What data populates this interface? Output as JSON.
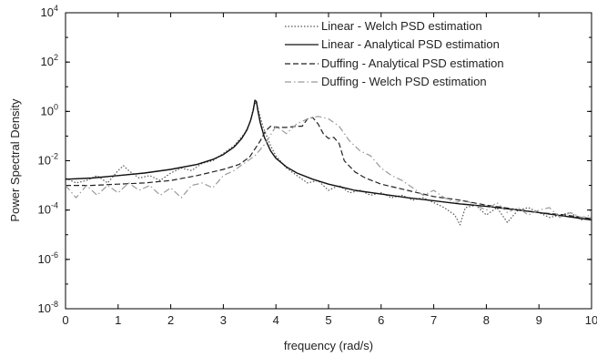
{
  "chart_data": {
    "type": "line",
    "title": "",
    "xlabel": "frequency (rad/s)",
    "ylabel": "Power Spectral Density",
    "xlim": [
      0,
      10
    ],
    "ylim_exponent": [
      -8,
      4
    ],
    "yscale": "log",
    "grid": false,
    "legend_position": "top-right",
    "x_ticks": [
      "0",
      "1",
      "2",
      "3",
      "4",
      "5",
      "6",
      "7",
      "8",
      "9",
      "10"
    ],
    "y_ticks": [
      {
        "base": "10",
        "exp": "-8",
        "value": -8
      },
      {
        "base": "10",
        "exp": "-6",
        "value": -6
      },
      {
        "base": "10",
        "exp": "-4",
        "value": -4
      },
      {
        "base": "10",
        "exp": "-2",
        "value": -2
      },
      {
        "base": "10",
        "exp": "0",
        "value": 0
      },
      {
        "base": "10",
        "exp": "2",
        "value": 2
      },
      {
        "base": "10",
        "exp": "4",
        "value": 4
      }
    ],
    "series": [
      {
        "name": "Linear - Welch PSD estimation",
        "style": "dotted",
        "color": "#555555",
        "x": [
          0.0,
          0.2,
          0.4,
          0.6,
          0.8,
          1.0,
          1.1,
          1.2,
          1.4,
          1.6,
          1.8,
          2.0,
          2.2,
          2.4,
          2.6,
          2.8,
          3.0,
          3.2,
          3.4,
          3.5,
          3.58,
          3.62,
          3.66,
          3.75,
          3.9,
          4.0,
          4.2,
          4.4,
          4.6,
          4.8,
          5.0,
          5.2,
          5.4,
          5.6,
          5.8,
          6.0,
          6.2,
          6.4,
          6.6,
          6.8,
          7.0,
          7.2,
          7.4,
          7.5,
          7.6,
          7.8,
          8.0,
          8.2,
          8.4,
          8.6,
          8.8,
          9.0,
          9.2,
          9.4,
          9.6,
          9.8,
          10.0
        ],
        "log10_y": [
          -2.7,
          -2.9,
          -2.8,
          -2.6,
          -2.9,
          -2.4,
          -2.2,
          -2.4,
          -2.7,
          -2.6,
          -2.8,
          -2.5,
          -2.3,
          -2.4,
          -2.1,
          -2.0,
          -1.7,
          -1.4,
          -0.9,
          -0.5,
          0.2,
          0.4,
          0.1,
          -0.6,
          -1.4,
          -1.8,
          -2.3,
          -2.6,
          -2.9,
          -2.8,
          -3.2,
          -3.0,
          -3.3,
          -3.2,
          -3.4,
          -3.3,
          -3.5,
          -3.4,
          -3.6,
          -3.5,
          -3.7,
          -3.9,
          -4.2,
          -4.6,
          -3.9,
          -3.8,
          -4.2,
          -3.9,
          -4.5,
          -4.0,
          -3.9,
          -4.1,
          -4.3,
          -4.2,
          -4.1,
          -4.4,
          -4.3
        ]
      },
      {
        "name": "Linear - Analytical PSD estimation",
        "style": "solid",
        "color": "#111111",
        "x": [
          0.0,
          0.5,
          1.0,
          1.5,
          2.0,
          2.5,
          2.8,
          3.0,
          3.2,
          3.35,
          3.45,
          3.52,
          3.57,
          3.6,
          3.63,
          3.66,
          3.7,
          3.78,
          3.9,
          4.0,
          4.2,
          4.4,
          4.7,
          5.0,
          5.5,
          6.0,
          6.5,
          7.0,
          7.5,
          8.0,
          8.5,
          9.0,
          9.5,
          10.0
        ],
        "log10_y": [
          -2.75,
          -2.7,
          -2.6,
          -2.5,
          -2.35,
          -2.15,
          -1.95,
          -1.75,
          -1.45,
          -1.1,
          -0.75,
          -0.35,
          0.05,
          0.45,
          0.4,
          0.0,
          -0.45,
          -1.05,
          -1.6,
          -1.9,
          -2.25,
          -2.5,
          -2.75,
          -2.95,
          -3.2,
          -3.35,
          -3.5,
          -3.62,
          -3.75,
          -3.85,
          -3.97,
          -4.1,
          -4.25,
          -4.4
        ]
      },
      {
        "name": "Duffing - Analytical PSD estimation",
        "style": "dashed",
        "color": "#222222",
        "x": [
          0.0,
          0.5,
          1.0,
          1.5,
          2.0,
          2.5,
          3.0,
          3.3,
          3.5,
          3.7,
          3.8,
          3.9,
          4.0,
          4.2,
          4.4,
          4.5,
          4.6,
          4.7,
          4.8,
          4.9,
          5.0,
          5.1,
          5.2,
          5.3,
          5.5,
          5.7,
          6.0,
          6.5,
          7.0,
          7.5,
          8.0,
          8.5,
          9.0,
          9.5,
          10.0
        ],
        "log10_y": [
          -3.0,
          -3.0,
          -2.95,
          -2.9,
          -2.8,
          -2.6,
          -2.35,
          -2.15,
          -1.85,
          -1.2,
          -0.8,
          -0.6,
          -0.65,
          -0.65,
          -0.6,
          -0.6,
          -0.3,
          -0.25,
          -0.5,
          -0.9,
          -1.1,
          -1.05,
          -1.3,
          -2.0,
          -2.45,
          -2.7,
          -2.95,
          -3.2,
          -3.45,
          -3.6,
          -3.8,
          -3.95,
          -4.1,
          -4.2,
          -4.35
        ]
      },
      {
        "name": "Duffing - Welch PSD estimation",
        "style": "dash-dot",
        "color": "#9a9a9a",
        "x": [
          0.0,
          0.2,
          0.4,
          0.6,
          0.8,
          1.0,
          1.2,
          1.4,
          1.6,
          1.8,
          2.0,
          2.2,
          2.4,
          2.6,
          2.8,
          3.0,
          3.2,
          3.4,
          3.6,
          3.8,
          4.0,
          4.2,
          4.4,
          4.6,
          4.8,
          5.0,
          5.2,
          5.4,
          5.6,
          5.8,
          6.0,
          6.2,
          6.4,
          6.6,
          6.8,
          7.0,
          7.2,
          7.4,
          7.6,
          7.8,
          8.0,
          8.2,
          8.4,
          8.6,
          8.8,
          9.0,
          9.2,
          9.4,
          9.6,
          9.8,
          10.0
        ],
        "log10_y": [
          -3.0,
          -3.5,
          -3.0,
          -3.4,
          -3.0,
          -3.3,
          -2.9,
          -3.2,
          -3.0,
          -3.4,
          -3.1,
          -3.5,
          -3.0,
          -2.9,
          -3.1,
          -2.6,
          -2.4,
          -2.1,
          -1.8,
          -1.3,
          -0.6,
          -0.9,
          -0.5,
          -0.3,
          -0.2,
          -0.3,
          -0.6,
          -1.2,
          -1.6,
          -1.8,
          -2.3,
          -2.6,
          -2.8,
          -3.1,
          -3.4,
          -3.2,
          -3.5,
          -3.7,
          -3.6,
          -3.8,
          -4.0,
          -3.7,
          -4.1,
          -3.9,
          -4.2,
          -4.0,
          -3.9,
          -4.3,
          -4.1,
          -4.3,
          -4.2
        ]
      }
    ]
  }
}
